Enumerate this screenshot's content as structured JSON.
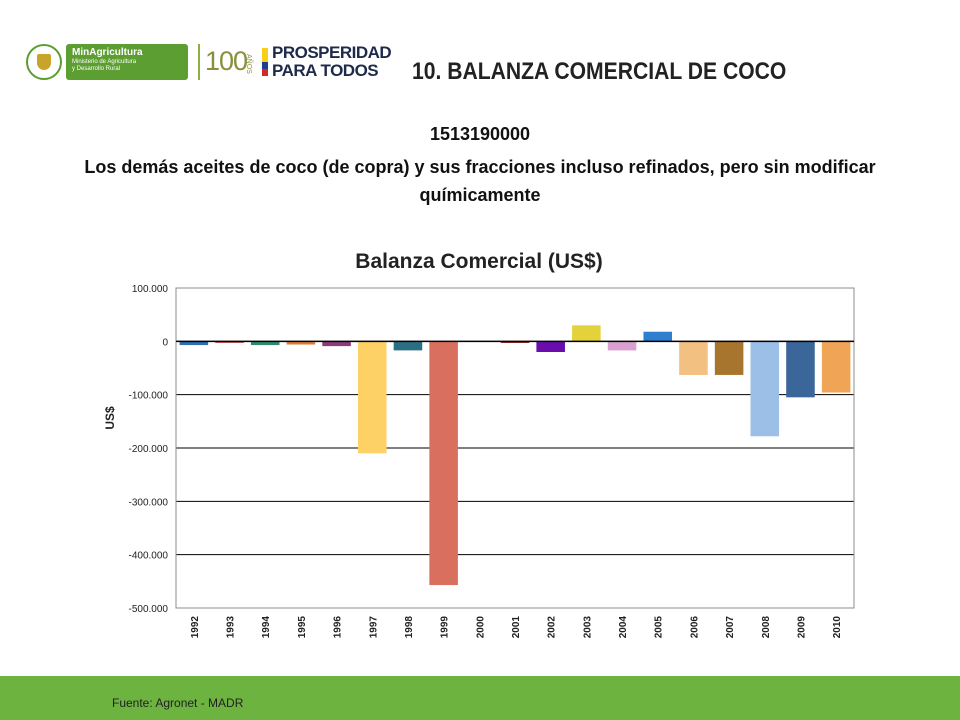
{
  "header": {
    "ministry_name": "MinAgricultura",
    "ministry_sub1": "Ministerio de Agricultura",
    "ministry_sub2": "y Desarrollo Rural",
    "hundred": "100",
    "anos": "AÑOS",
    "prosperidad_line1": "PROSPERIDAD",
    "prosperidad_line2": "PARA TODOS"
  },
  "slide": {
    "title": "10. BALANZA COMERCIAL DE COCO",
    "code": "1513190000",
    "description": "Los demás aceites de coco (de copra) y sus fracciones incluso refinados, pero sin modificar químicamente"
  },
  "footer": {
    "source": "Fuente: Agronet - MADR",
    "color": "#6db33f"
  },
  "chart_data": {
    "type": "bar",
    "title": "Balanza Comercial (US$)",
    "xlabel": "",
    "ylabel": "US$",
    "ylim": [
      -500000,
      100000
    ],
    "yticks": [
      100000,
      0,
      -100000,
      -200000,
      -300000,
      -400000,
      -500000
    ],
    "ytick_labels": [
      "100.000",
      "0",
      "-100.000",
      "-200.000",
      "-300.000",
      "-400.000",
      "-500.000"
    ],
    "grid": true,
    "legend": "none",
    "categories": [
      "1992",
      "1993",
      "1994",
      "1995",
      "1996",
      "1997",
      "1998",
      "1999",
      "2000",
      "2001",
      "2002",
      "2003",
      "2004",
      "2005",
      "2006",
      "2007",
      "2008",
      "2009",
      "2010"
    ],
    "values": [
      -7000,
      -3000,
      -7000,
      -6000,
      -9000,
      -210000,
      -17000,
      -457000,
      0,
      -3000,
      -20000,
      30000,
      -17000,
      18000,
      -63000,
      -63000,
      -178000,
      -105000,
      -96000
    ],
    "colors": [
      "#2f6fb0",
      "#c0504d",
      "#2e8b6e",
      "#e07b39",
      "#8c3a7a",
      "#fdd166",
      "#2b6f84",
      "#d96f5e",
      "#9999cc",
      "#8b1a1a",
      "#6a0dad",
      "#e3d23a",
      "#d9a0d0",
      "#2f7fd0",
      "#f2c080",
      "#a8752f",
      "#9bbfe6",
      "#3a6699",
      "#f0a455"
    ]
  }
}
